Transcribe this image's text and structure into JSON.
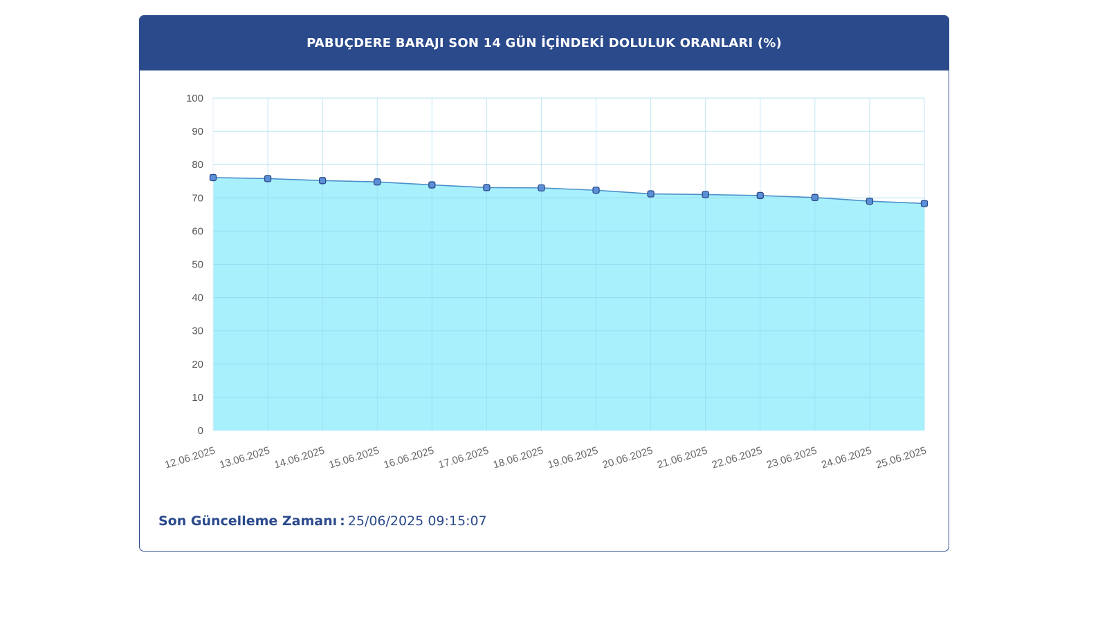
{
  "header": {
    "title": "PABUÇDERE BARAJI SON 14 GÜN İÇİNDEKİ DOLULUK ORANLARI (%)"
  },
  "footer": {
    "label": "Son Güncelleme Zamanı",
    "separator": ":",
    "value": "25/06/2025 09:15:07"
  },
  "colors": {
    "header_bg": "#2b4a8c",
    "area_fill": "#a8f0fc",
    "line": "#4a90c8",
    "marker_fill": "#5b8fd6",
    "marker_stroke": "#2b4a8c"
  },
  "chart_data": {
    "type": "area",
    "title": "PABUÇDERE BARAJI SON 14 GÜN İÇİNDEKİ DOLULUK ORANLARI (%)",
    "categories": [
      "12.06.2025",
      "13.06.2025",
      "14.06.2025",
      "15.06.2025",
      "16.06.2025",
      "17.06.2025",
      "18.06.2025",
      "19.06.2025",
      "20.06.2025",
      "21.06.2025",
      "22.06.2025",
      "23.06.2025",
      "24.06.2025",
      "25.06.2025"
    ],
    "series": [
      {
        "values": [
          76.1,
          75.8,
          75.2,
          74.8,
          73.9,
          73.1,
          73.0,
          72.3,
          71.2,
          71.0,
          70.7,
          70.1,
          69.0,
          68.3
        ]
      }
    ],
    "yticks": [
      "0",
      "10",
      "20",
      "30",
      "40",
      "50",
      "60",
      "70",
      "80",
      "90",
      "100"
    ],
    "ylim": [
      0,
      100
    ],
    "grid": true,
    "legend": "none"
  }
}
